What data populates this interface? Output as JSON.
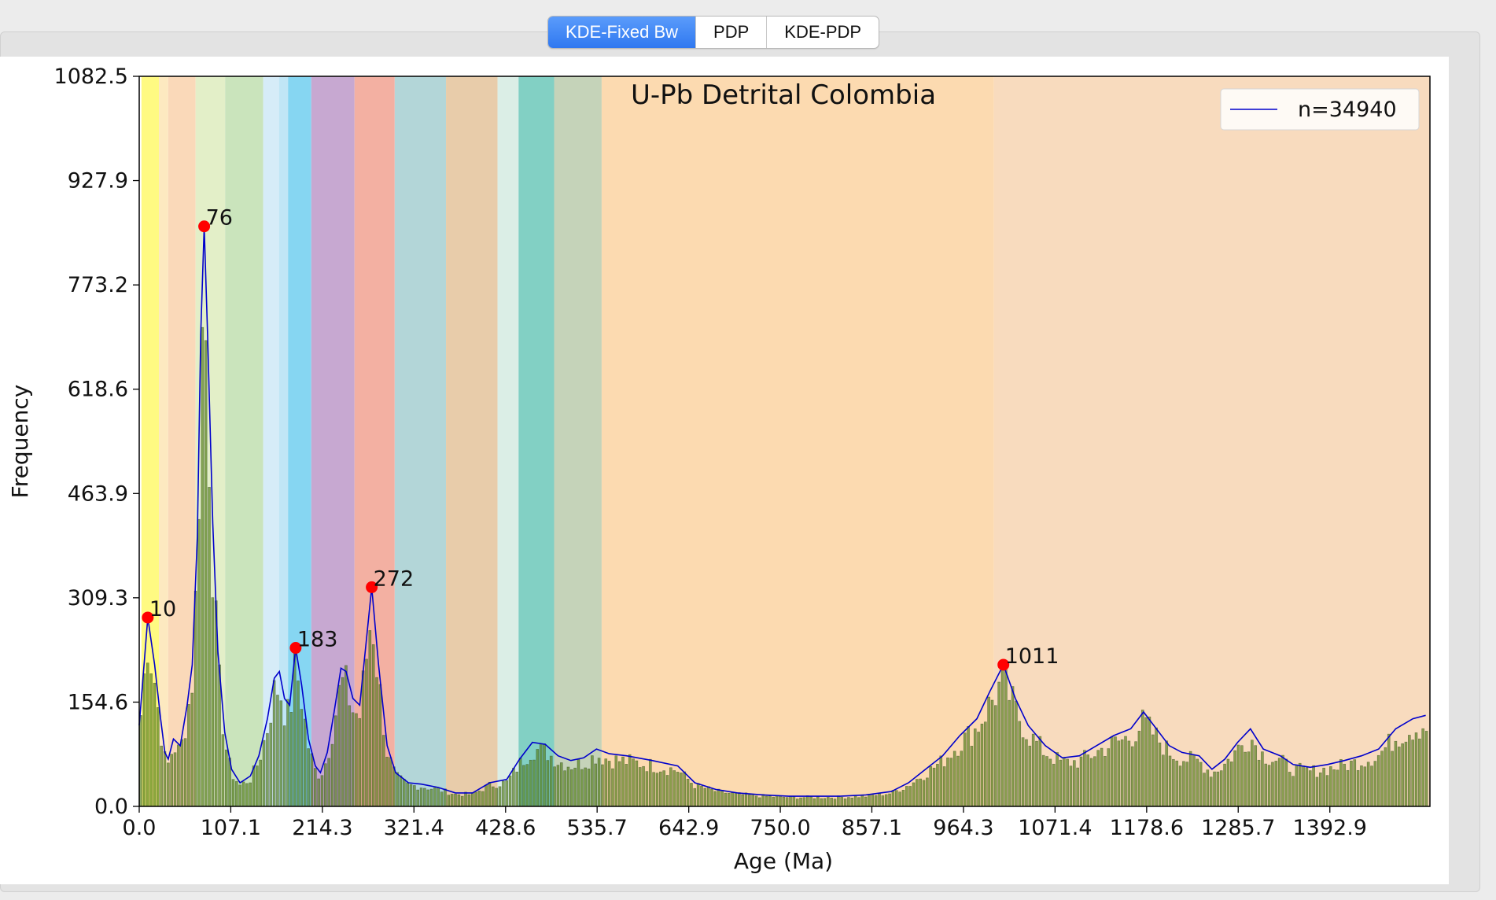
{
  "tabs": [
    {
      "label": "KDE-Fixed Bw",
      "active": true
    },
    {
      "label": "PDP",
      "active": false
    },
    {
      "label": "KDE-PDP",
      "active": false
    }
  ],
  "chart_data": {
    "type": "bar",
    "title": "U-Pb Detrital Colombia",
    "xlabel": "Age (Ma)",
    "ylabel": "Frequency",
    "xlim": [
      0,
      1510
    ],
    "ylim": [
      0,
      1082.5
    ],
    "xticks": [
      "0.0",
      "107.1",
      "214.3",
      "321.4",
      "428.6",
      "535.7",
      "642.9",
      "750.0",
      "857.1",
      "964.3",
      "1071.4",
      "1178.6",
      "1285.7",
      "1392.9"
    ],
    "yticks": [
      "0.0",
      "154.6",
      "309.3",
      "463.9",
      "618.6",
      "773.2",
      "927.9",
      "1082.5"
    ],
    "legend": {
      "label": "n=34940",
      "position": "top-right",
      "color": "#0000cc"
    },
    "line_series": {
      "name": "n=34940",
      "color": "#0000cc",
      "points": [
        [
          0,
          120
        ],
        [
          10,
          280
        ],
        [
          18,
          210
        ],
        [
          25,
          130
        ],
        [
          30,
          80
        ],
        [
          34,
          70
        ],
        [
          40,
          100
        ],
        [
          48,
          90
        ],
        [
          56,
          150
        ],
        [
          62,
          210
        ],
        [
          68,
          400
        ],
        [
          72,
          700
        ],
        [
          76,
          860
        ],
        [
          80,
          700
        ],
        [
          86,
          420
        ],
        [
          92,
          230
        ],
        [
          100,
          110
        ],
        [
          108,
          55
        ],
        [
          118,
          35
        ],
        [
          130,
          45
        ],
        [
          140,
          75
        ],
        [
          150,
          130
        ],
        [
          158,
          190
        ],
        [
          164,
          200
        ],
        [
          170,
          160
        ],
        [
          176,
          150
        ],
        [
          183,
          235
        ],
        [
          190,
          180
        ],
        [
          198,
          100
        ],
        [
          206,
          60
        ],
        [
          212,
          50
        ],
        [
          220,
          80
        ],
        [
          228,
          140
        ],
        [
          236,
          205
        ],
        [
          242,
          200
        ],
        [
          250,
          160
        ],
        [
          258,
          150
        ],
        [
          266,
          250
        ],
        [
          272,
          325
        ],
        [
          280,
          210
        ],
        [
          290,
          90
        ],
        [
          300,
          50
        ],
        [
          315,
          35
        ],
        [
          330,
          33
        ],
        [
          350,
          28
        ],
        [
          370,
          20
        ],
        [
          390,
          20
        ],
        [
          410,
          35
        ],
        [
          430,
          40
        ],
        [
          445,
          70
        ],
        [
          460,
          95
        ],
        [
          475,
          92
        ],
        [
          490,
          75
        ],
        [
          505,
          68
        ],
        [
          520,
          72
        ],
        [
          535,
          85
        ],
        [
          550,
          78
        ],
        [
          570,
          75
        ],
        [
          600,
          68
        ],
        [
          630,
          60
        ],
        [
          650,
          35
        ],
        [
          675,
          25
        ],
        [
          700,
          20
        ],
        [
          730,
          17
        ],
        [
          760,
          15
        ],
        [
          790,
          15
        ],
        [
          820,
          15
        ],
        [
          850,
          17
        ],
        [
          880,
          22
        ],
        [
          900,
          35
        ],
        [
          920,
          55
        ],
        [
          940,
          75
        ],
        [
          960,
          105
        ],
        [
          980,
          130
        ],
        [
          995,
          170
        ],
        [
          1011,
          210
        ],
        [
          1025,
          160
        ],
        [
          1040,
          120
        ],
        [
          1060,
          90
        ],
        [
          1080,
          72
        ],
        [
          1100,
          75
        ],
        [
          1120,
          90
        ],
        [
          1140,
          105
        ],
        [
          1160,
          115
        ],
        [
          1175,
          140
        ],
        [
          1190,
          115
        ],
        [
          1205,
          90
        ],
        [
          1220,
          80
        ],
        [
          1240,
          75
        ],
        [
          1255,
          55
        ],
        [
          1270,
          70
        ],
        [
          1285,
          95
        ],
        [
          1300,
          115
        ],
        [
          1315,
          85
        ],
        [
          1335,
          75
        ],
        [
          1350,
          62
        ],
        [
          1370,
          58
        ],
        [
          1390,
          62
        ],
        [
          1410,
          68
        ],
        [
          1430,
          75
        ],
        [
          1450,
          85
        ],
        [
          1470,
          115
        ],
        [
          1490,
          130
        ],
        [
          1505,
          135
        ]
      ]
    },
    "peaks": [
      {
        "age": 10,
        "label": "10",
        "y": 280
      },
      {
        "age": 76,
        "label": "76",
        "y": 860
      },
      {
        "age": 183,
        "label": "183",
        "y": 235
      },
      {
        "age": 272,
        "label": "272",
        "y": 325
      },
      {
        "age": 1011,
        "label": "1011",
        "y": 210
      }
    ],
    "bands": [
      {
        "from": 2.6,
        "to": 23,
        "color": "#fffa82"
      },
      {
        "from": 23,
        "to": 33.9,
        "color": "#fde9c0"
      },
      {
        "from": 33.9,
        "to": 66,
        "color": "#fad9b9"
      },
      {
        "from": 66,
        "to": 100.5,
        "color": "#e3efc8"
      },
      {
        "from": 100.5,
        "to": 145,
        "color": "#cae4bc"
      },
      {
        "from": 145,
        "to": 163.5,
        "color": "#d6ecf8"
      },
      {
        "from": 163.5,
        "to": 174.1,
        "color": "#c0e6f6"
      },
      {
        "from": 174.1,
        "to": 201.3,
        "color": "#86d6f2"
      },
      {
        "from": 201.3,
        "to": 251.9,
        "color": "#c7a8d1"
      },
      {
        "from": 251.9,
        "to": 298.9,
        "color": "#f3b0a2"
      },
      {
        "from": 298.9,
        "to": 358.9,
        "color": "#b3d6d8"
      },
      {
        "from": 358.9,
        "to": 419.2,
        "color": "#e8ccaa"
      },
      {
        "from": 419.2,
        "to": 443.8,
        "color": "#dbeee6"
      },
      {
        "from": 443.8,
        "to": 485.4,
        "color": "#82d0c4"
      },
      {
        "from": 485.4,
        "to": 541,
        "color": "#c5d3b9"
      },
      {
        "from": 541,
        "to": 1000,
        "color": "#fcdab0"
      },
      {
        "from": 1000,
        "to": 1510,
        "color": "#f8dbbe"
      }
    ]
  }
}
